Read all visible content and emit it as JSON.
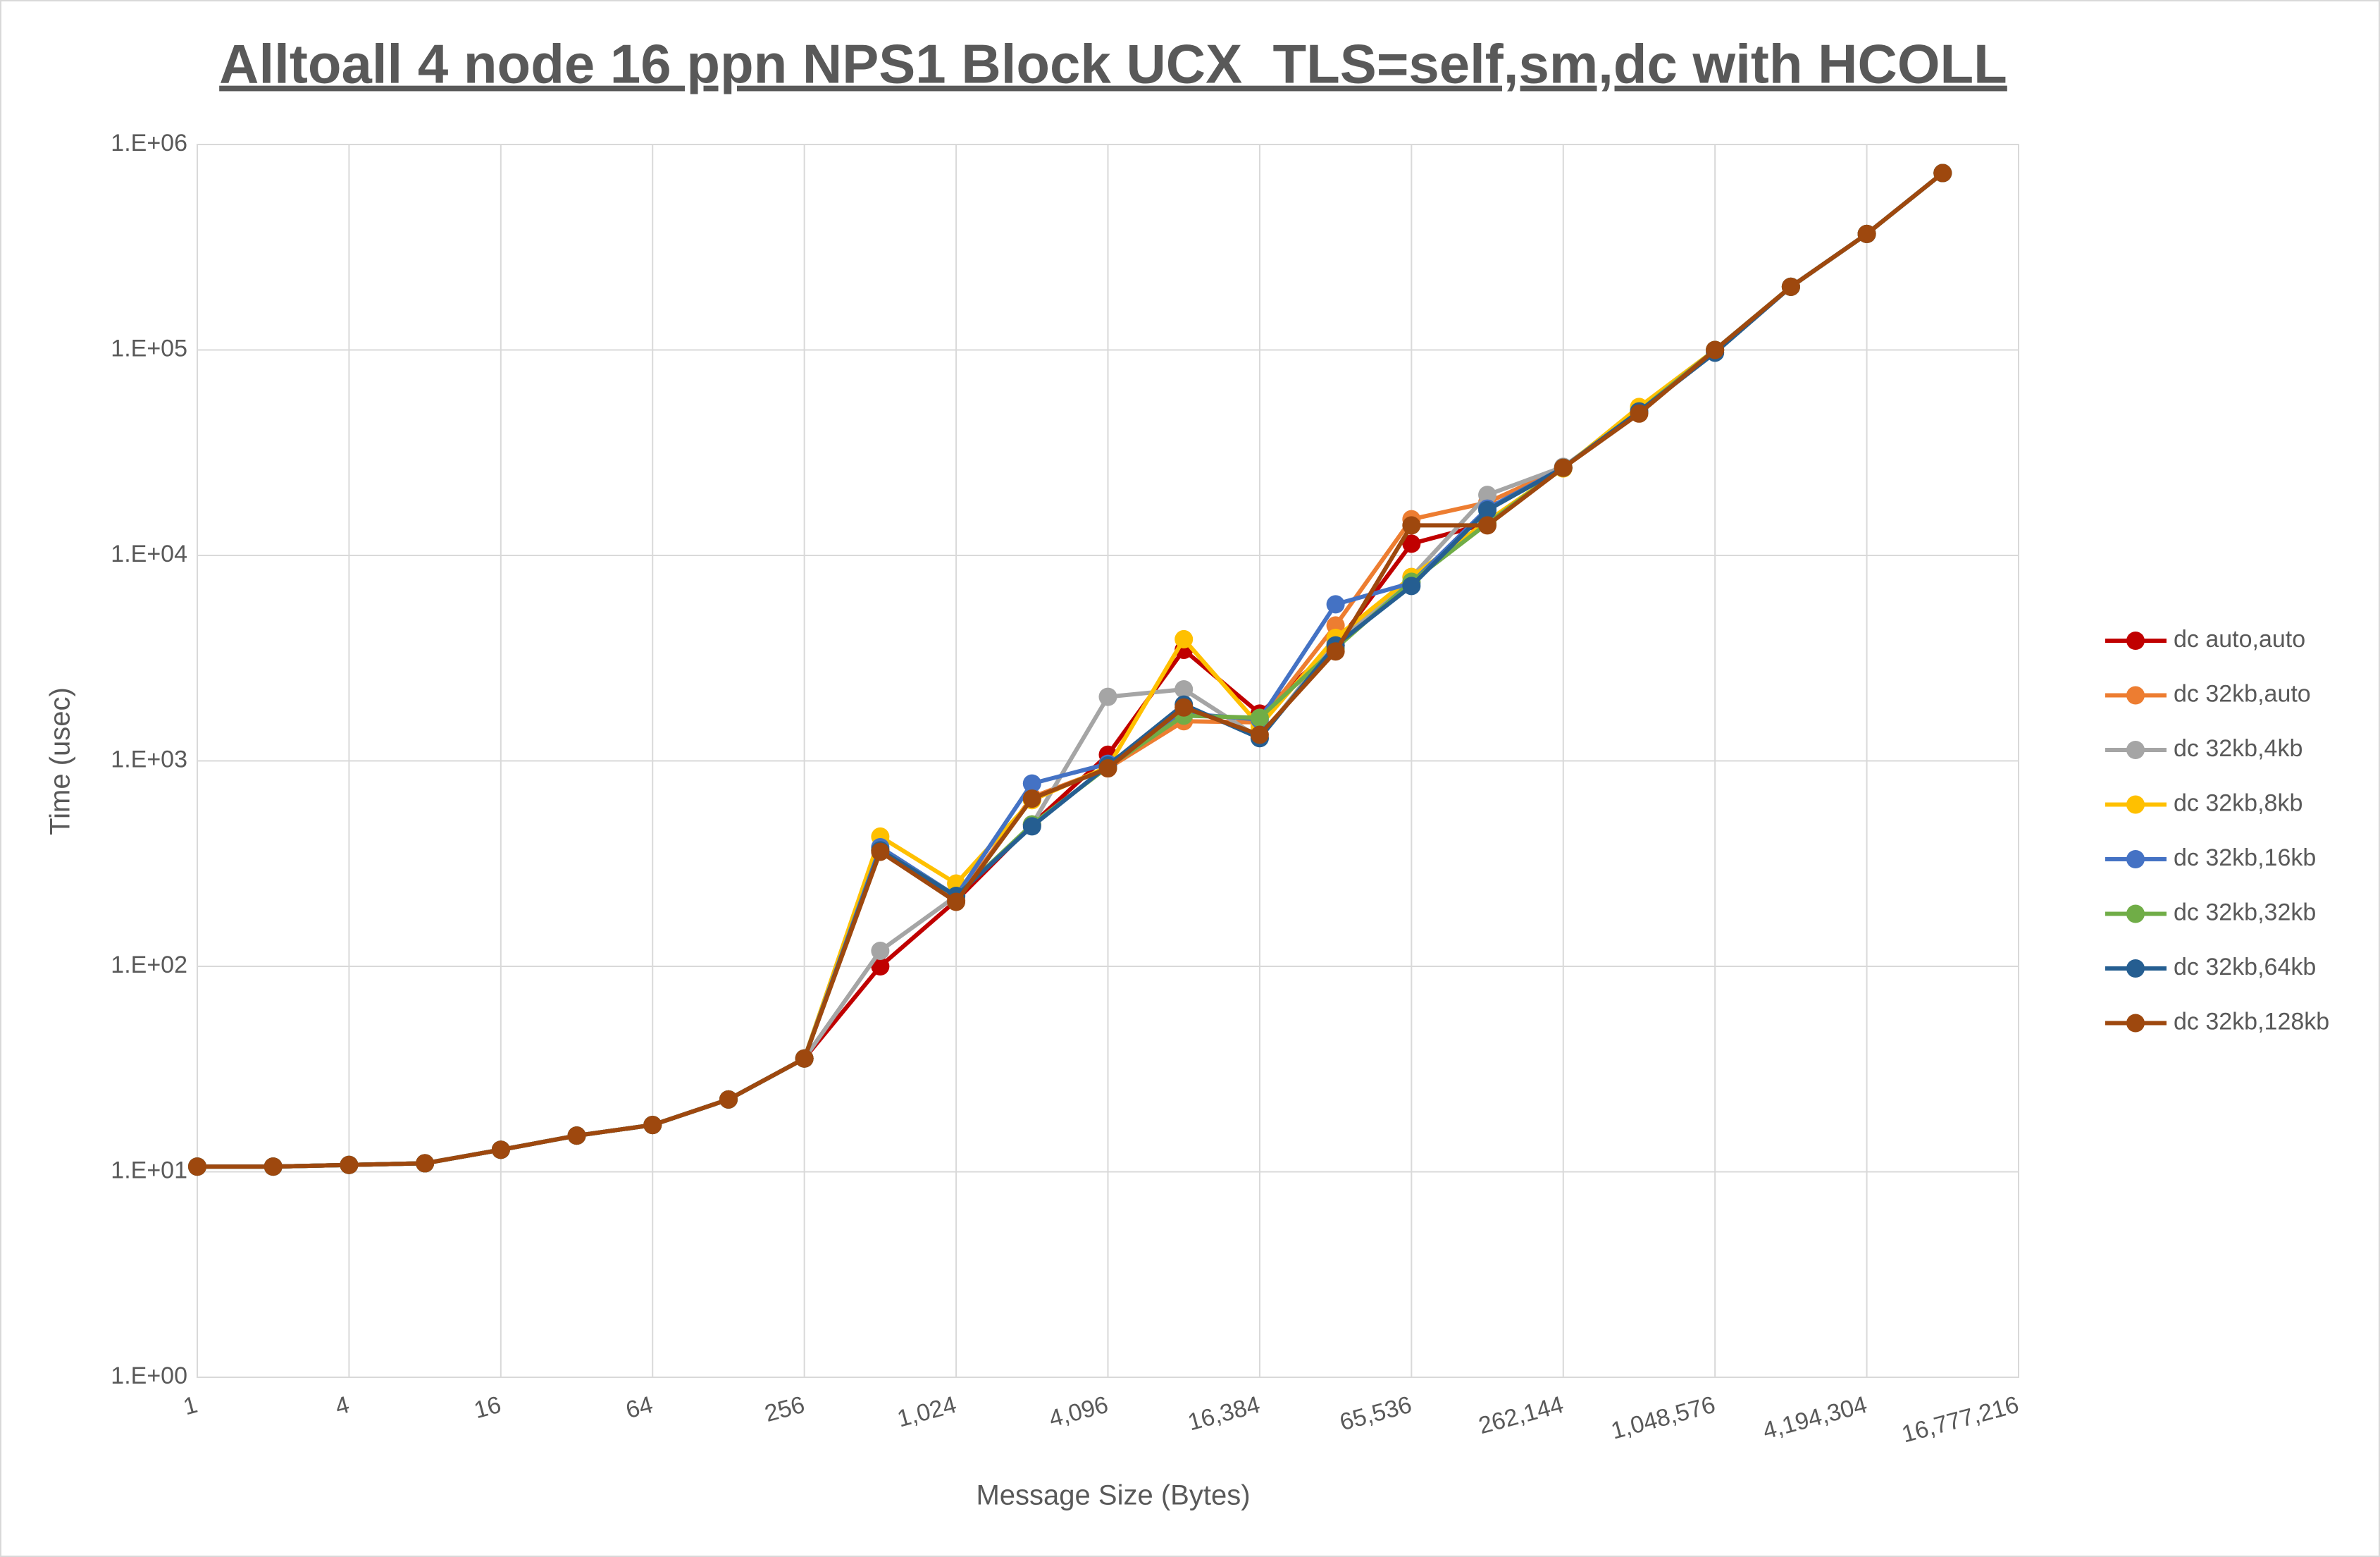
{
  "chart_data": {
    "type": "line",
    "title": "Alltoall 4 node 16 ppn NPS1 Block UCX_TLS=self,sm,dc with HCOLL",
    "x_label": "Message Size (Bytes)",
    "y_label": "Time (usec)",
    "xscale": "log",
    "yscale": "log",
    "grid": true,
    "legend": "right",
    "x": [
      1,
      2,
      4,
      8,
      16,
      32,
      64,
      128,
      256,
      512,
      1024,
      2048,
      4096,
      8192,
      16384,
      32768,
      65536,
      131072,
      262144,
      524288,
      1048576,
      2097152,
      4194304,
      8388608
    ],
    "xlim": [
      1,
      16777216
    ],
    "xticks": [
      1,
      4,
      16,
      64,
      256,
      {
        "value": 1024,
        "label": "1,024"
      },
      {
        "value": 4096,
        "label": "4,096"
      },
      {
        "value": 16384,
        "label": "16,384"
      },
      {
        "value": 65536,
        "label": "65,536"
      },
      {
        "value": 262144,
        "label": "262,144"
      },
      {
        "value": 1048576,
        "label": "1,048,576"
      },
      {
        "value": 4194304,
        "label": "4,194,304"
      },
      {
        "value": 16777216,
        "label": "16,777,216"
      }
    ],
    "ylim": [
      1,
      1000000
    ],
    "yticks": [
      {
        "value": 1,
        "label": "1.E+00"
      },
      {
        "value": 10,
        "label": "1.E+01"
      },
      {
        "value": 100,
        "label": "1.E+02"
      },
      {
        "value": 1000,
        "label": "1.E+03"
      },
      {
        "value": 10000,
        "label": "1.E+04"
      },
      {
        "value": 100000,
        "label": "1.E+05"
      },
      {
        "value": 1000000,
        "label": "1.E+06"
      }
    ],
    "series": [
      {
        "name": "dc auto,auto",
        "color": "#c00000",
        "values": [
          10.6,
          10.6,
          10.8,
          11.0,
          12.8,
          15.0,
          16.9,
          22.5,
          35.6,
          100,
          209,
          490,
          1072,
          3470,
          1700,
          3650,
          11400,
          14300,
          26700,
          50200,
          100000,
          203000,
          367000,
          726000
        ]
      },
      {
        "name": "dc 32kb,auto",
        "color": "#ed7d31",
        "values": [
          10.6,
          10.6,
          10.8,
          11.0,
          12.8,
          15.0,
          16.9,
          22.5,
          35.6,
          367,
          210,
          666,
          920,
          1560,
          1540,
          4560,
          15000,
          18100,
          26700,
          50200,
          100000,
          203000,
          367000,
          726000
        ]
      },
      {
        "name": "dc 32kb,4kb",
        "color": "#a5a5a5",
        "values": [
          10.6,
          10.6,
          10.8,
          11.0,
          12.8,
          15.0,
          16.9,
          22.5,
          35.6,
          119,
          220,
          490,
          2050,
          2230,
          1290,
          3780,
          7850,
          19700,
          27000,
          50200,
          97000,
          203000,
          367000,
          726000
        ]
      },
      {
        "name": "dc 32kb,8kb",
        "color": "#ffc000",
        "values": [
          10.6,
          10.6,
          10.8,
          11.0,
          12.8,
          15.0,
          16.9,
          22.5,
          35.6,
          428,
          253,
          644,
          935,
          3910,
          1480,
          3970,
          7850,
          14700,
          26500,
          52800,
          100000,
          203000,
          367000,
          726000
        ]
      },
      {
        "name": "dc 32kb,16kb",
        "color": "#4472c4",
        "values": [
          10.6,
          10.6,
          10.8,
          11.0,
          12.8,
          15.0,
          16.9,
          22.5,
          35.6,
          380,
          220,
          776,
          968,
          1700,
          1590,
          5780,
          7340,
          16900,
          26700,
          50200,
          100000,
          203000,
          367000,
          726000
        ]
      },
      {
        "name": "dc 32kb,32kb",
        "color": "#70ad47",
        "values": [
          10.6,
          10.6,
          10.8,
          11.0,
          12.8,
          15.0,
          16.9,
          22.5,
          35.6,
          367,
          220,
          490,
          935,
          1660,
          1620,
          3530,
          7440,
          14300,
          26700,
          50200,
          100000,
          203000,
          367000,
          726000
        ]
      },
      {
        "name": "dc 32kb,64kb",
        "color": "#255e91",
        "values": [
          10.6,
          10.6,
          10.8,
          11.0,
          12.8,
          15.0,
          16.9,
          22.5,
          35.6,
          367,
          220,
          480,
          950,
          1880,
          1290,
          3650,
          7100,
          16600,
          26700,
          50200,
          97000,
          203000,
          367000,
          726000
        ]
      },
      {
        "name": "dc 32kb,128kb",
        "color": "#9e480e",
        "values": [
          10.6,
          10.6,
          10.8,
          11.0,
          12.8,
          15.0,
          16.9,
          22.5,
          35.6,
          361,
          206,
          655,
          920,
          1820,
          1340,
          3410,
          14000,
          14000,
          26700,
          49000,
          100000,
          203000,
          367000,
          726000
        ]
      }
    ]
  }
}
